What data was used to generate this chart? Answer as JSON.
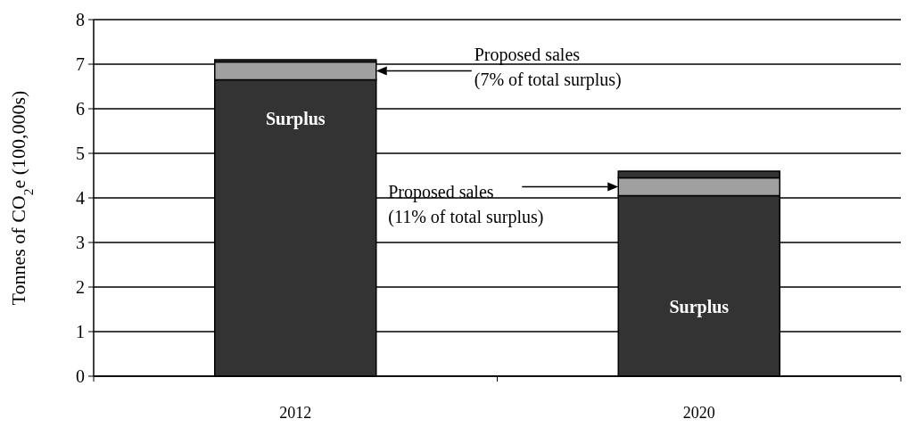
{
  "chart_data": {
    "type": "bar",
    "ylabel": "Tonnes of CO$_{2}$e (100,000s)",
    "categories": [
      "2012",
      "2020"
    ],
    "stacked": true,
    "series": [
      {
        "name": "Surplus",
        "color": "#333333",
        "values": [
          6.65,
          4.05
        ]
      },
      {
        "color": "#a0a0a0",
        "values": [
          0.4,
          0.4
        ]
      },
      {
        "color": "#333333",
        "values": [
          0.05,
          0.15
        ]
      }
    ],
    "ylim": [
      0,
      8
    ],
    "yticks": [
      0,
      1,
      2,
      3,
      4,
      5,
      6,
      7,
      8
    ],
    "grid": "y",
    "legend": false,
    "annotations": [
      "Proposed sales\n(7% of total surplus)",
      "Proposed sales\n(11% of total surplus)"
    ]
  }
}
